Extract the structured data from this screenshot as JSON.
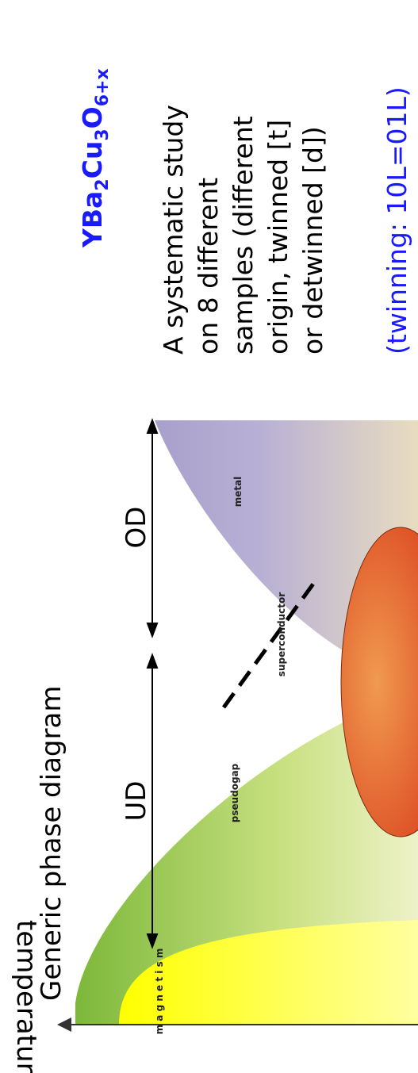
{
  "diagram": {
    "title": "Generic phase diagram",
    "axis_label": "temperature",
    "ranges": [
      "UD",
      "OD"
    ],
    "regions": [
      "metal",
      "superconductor",
      "pseudogap",
      "m a g n e t i s m"
    ]
  },
  "material": [
    "YBa",
    "2",
    "Cu",
    "3",
    "O",
    "6+x"
  ],
  "description": [
    "A systematic study",
    "on 8 different",
    "samples (different",
    "origin, twinned [t]",
    "or detwinned [d])"
  ],
  "note": "(twinning: 10L=01L)"
}
